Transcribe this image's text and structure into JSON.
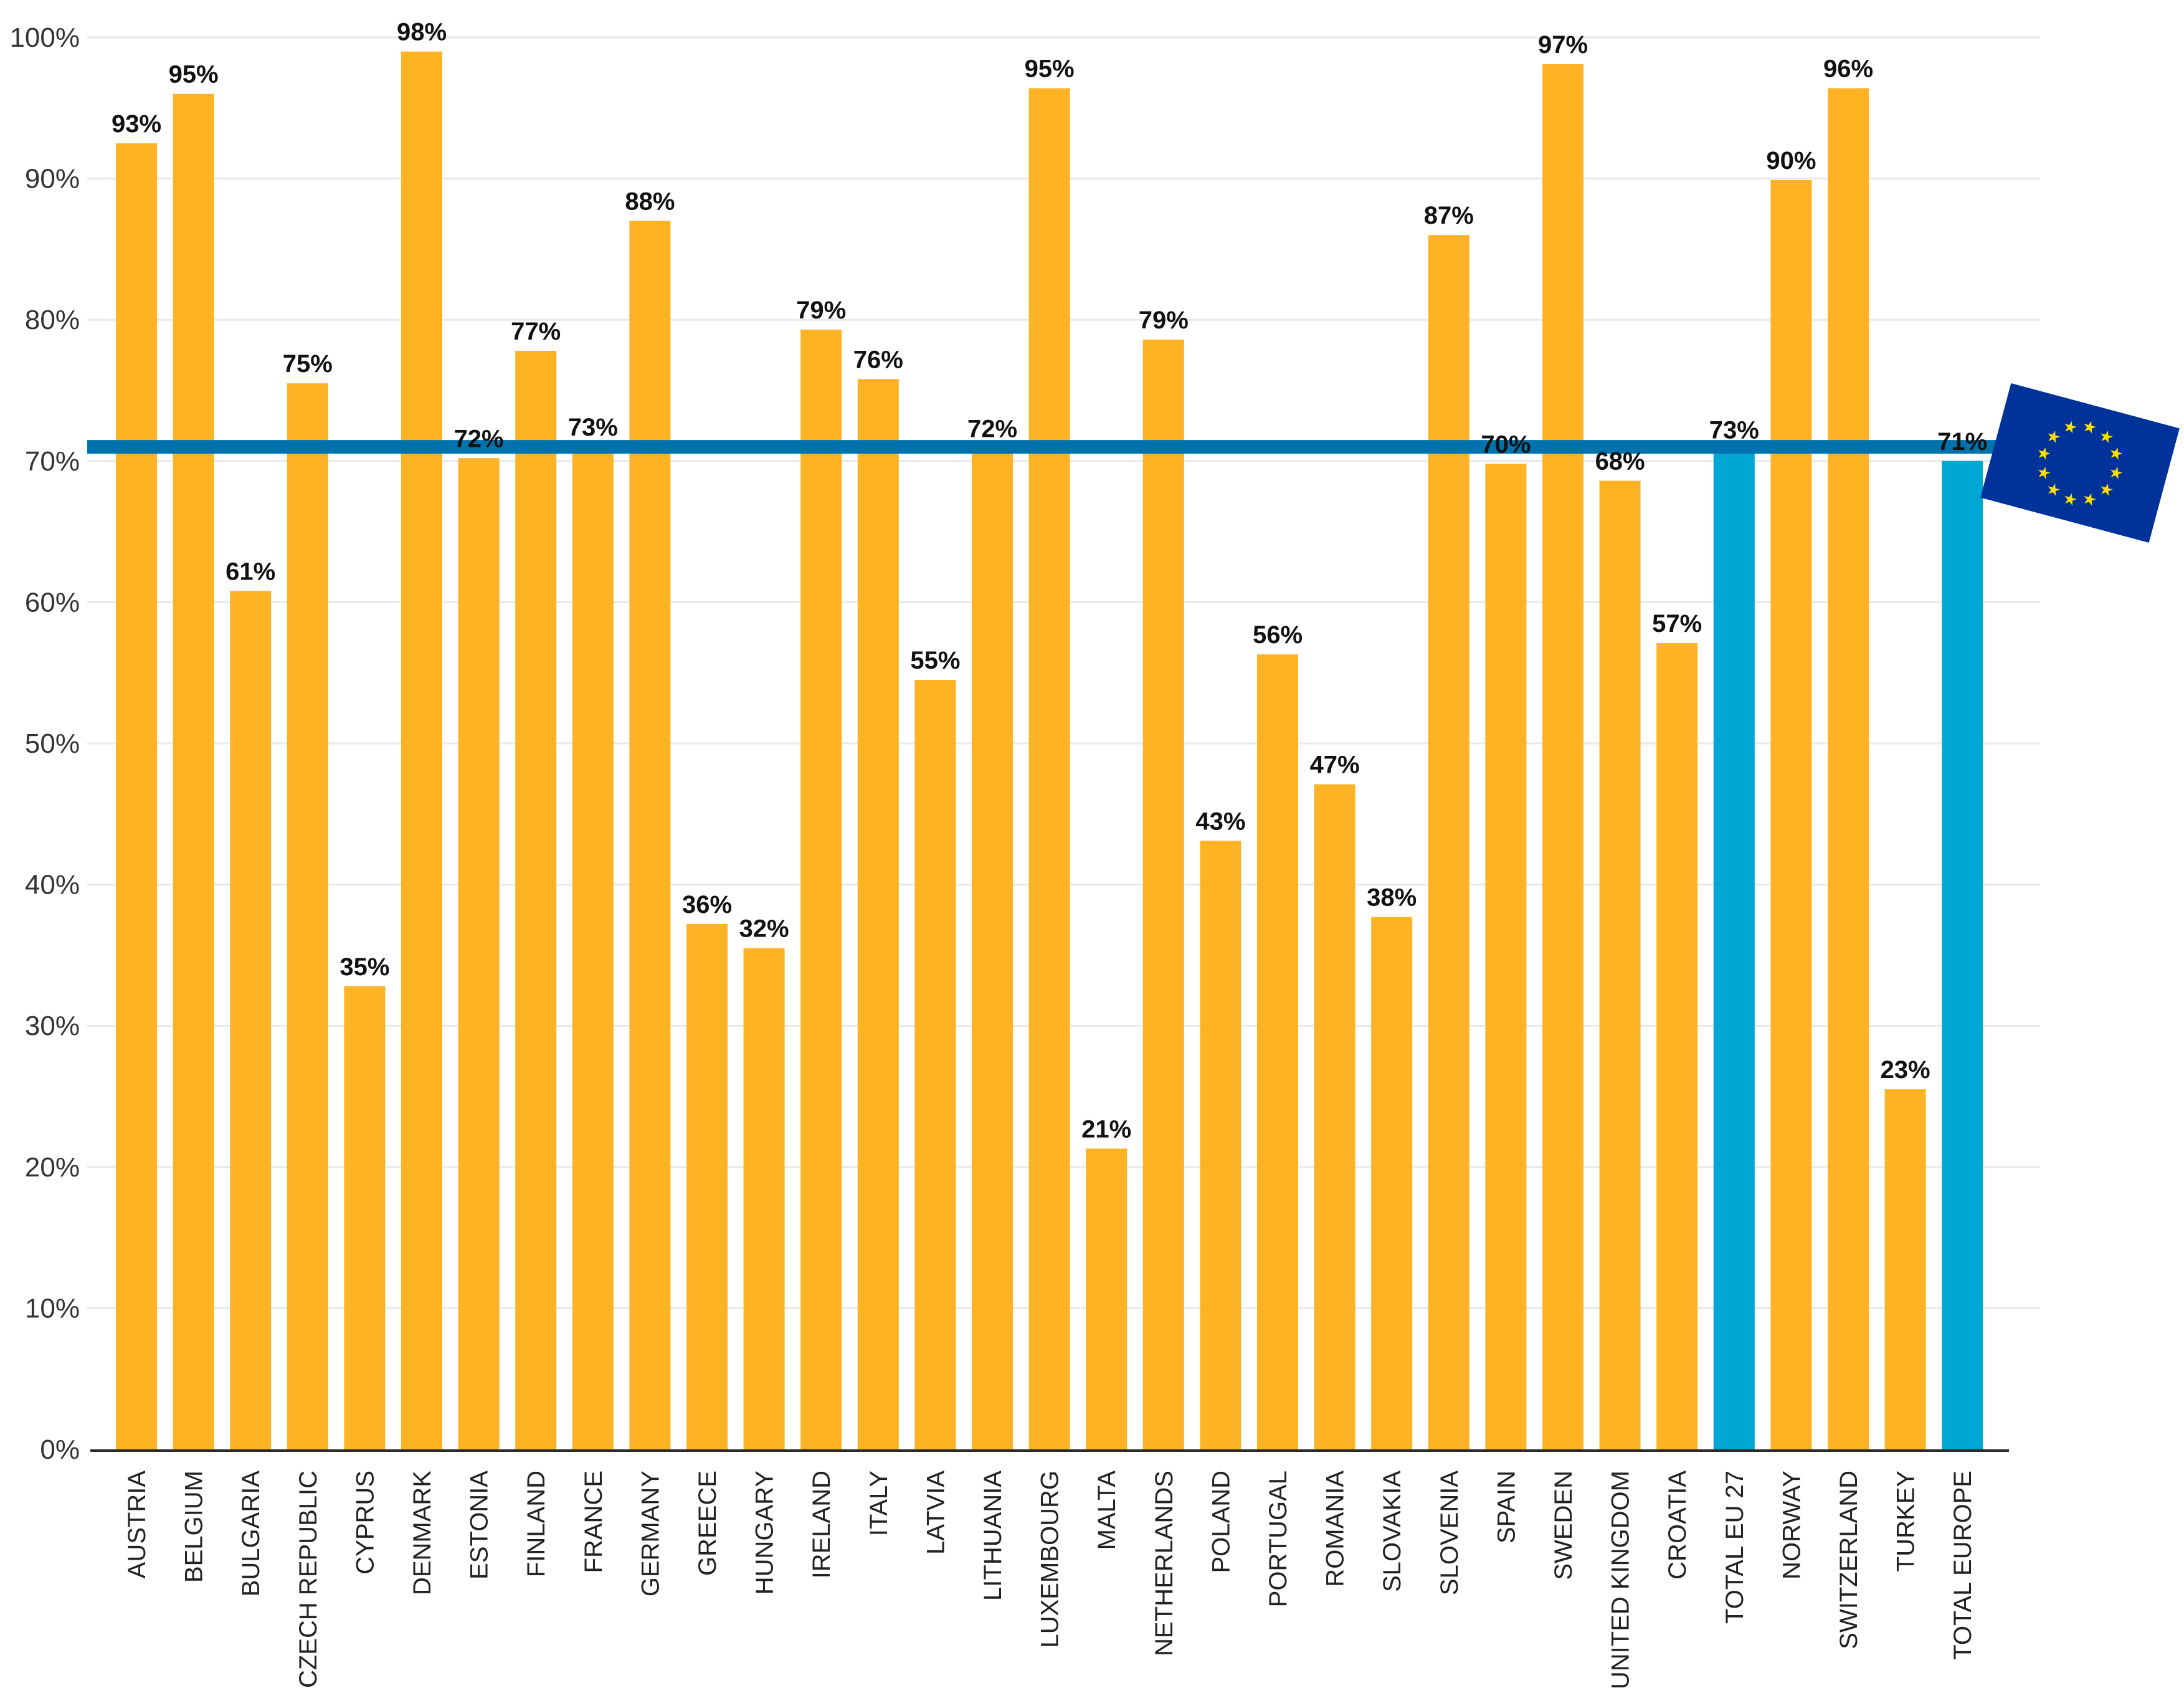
{
  "chart_data": {
    "type": "bar",
    "title": "",
    "xlabel": "",
    "ylabel": "",
    "ylim": [
      0,
      100
    ],
    "y_ticks": [
      "0%",
      "10%",
      "20%",
      "30%",
      "40%",
      "50%",
      "60%",
      "70%",
      "80%",
      "90%",
      "100%"
    ],
    "categories": [
      "AUSTRIA",
      "BELGIUM",
      "BULGARIA",
      "CZECH REPUBLIC",
      "CYPRUS",
      "DENMARK",
      "ESTONIA",
      "FINLAND",
      "FRANCE",
      "GERMANY",
      "GREECE",
      "HUNGARY",
      "IRELAND",
      "ITALY",
      "LATVIA",
      "LITHUANIA",
      "LUXEMBOURG",
      "MALTA",
      "NETHERLANDS",
      "POLAND",
      "PORTUGAL",
      "ROMANIA",
      "SLOVAKIA",
      "SLOVENIA",
      "SPAIN",
      "SWEDEN",
      "UNITED KINGDOM",
      "CROATIA",
      "TOTAL EU 27",
      "NORWAY",
      "SWITZERLAND",
      "TURKEY",
      "TOTAL EUROPE"
    ],
    "values": [
      93,
      95,
      61,
      75,
      35,
      98,
      72,
      77,
      73,
      88,
      36,
      32,
      79,
      76,
      55,
      72,
      95,
      21,
      79,
      43,
      56,
      47,
      38,
      87,
      70,
      97,
      68,
      57,
      73,
      90,
      96,
      23,
      71
    ],
    "bar_heights": [
      92.5,
      96.0,
      60.8,
      75.5,
      32.8,
      99.0,
      70.2,
      77.8,
      71.0,
      87.0,
      37.2,
      35.5,
      79.3,
      75.8,
      54.5,
      70.9,
      96.4,
      21.3,
      78.6,
      43.1,
      56.3,
      47.1,
      37.7,
      86.0,
      69.8,
      98.1,
      68.6,
      57.1,
      70.8,
      89.9,
      96.4,
      25.5,
      70.0
    ],
    "data_labels": [
      "93%",
      "95%",
      "61%",
      "75%",
      "35%",
      "98%",
      "72%",
      "77%",
      "73%",
      "88%",
      "36%",
      "32%",
      "79%",
      "76%",
      "55%",
      "72%",
      "95%",
      "21%",
      "79%",
      "43%",
      "56%",
      "47%",
      "38%",
      "87%",
      "70%",
      "97%",
      "68%",
      "57%",
      "73%",
      "90%",
      "96%",
      "23%",
      "71%"
    ],
    "highlighted": [
      "TOTAL EU 27",
      "TOTAL EUROPE"
    ],
    "reference_line": {
      "value": 71
    },
    "colors": {
      "bar": "#FDB324",
      "highlight": "#00A7D4",
      "reference_line": "#0072AE",
      "flag": "#003399",
      "flag_stars": "#FFDD00"
    }
  }
}
